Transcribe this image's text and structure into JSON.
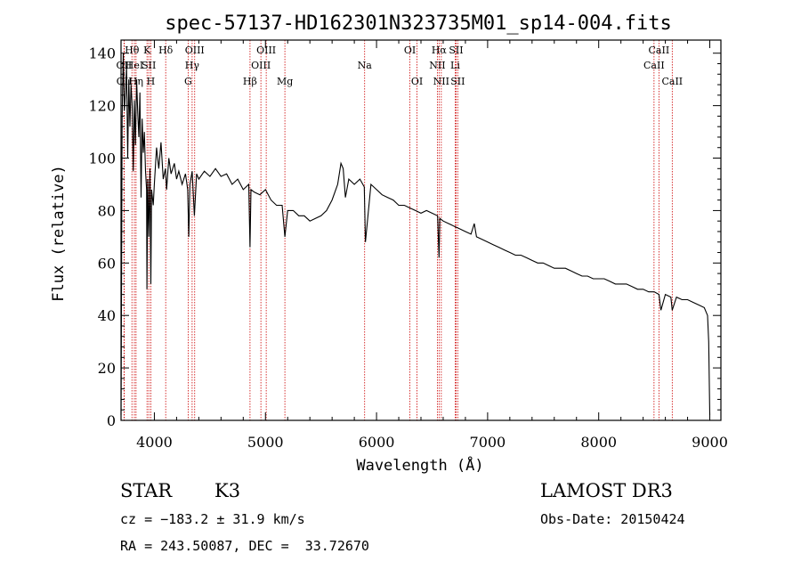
{
  "chart_data": {
    "type": "line",
    "title": "spec-57137-HD162301N323735M01_sp14-004.fits",
    "xlabel": "Wavelength (Å)",
    "ylabel": "Flux (relative)",
    "xlim": [
      3700,
      9100
    ],
    "ylim": [
      0,
      145
    ],
    "xticks": [
      4000,
      5000,
      6000,
      7000,
      8000,
      9000
    ],
    "yticks": [
      0,
      20,
      40,
      60,
      80,
      100,
      120,
      140
    ],
    "series": [
      {
        "name": "flux",
        "x": [
          3700,
          3705,
          3710,
          3720,
          3730,
          3740,
          3750,
          3760,
          3770,
          3780,
          3790,
          3800,
          3810,
          3820,
          3830,
          3840,
          3850,
          3860,
          3870,
          3880,
          3890,
          3900,
          3910,
          3920,
          3930,
          3933,
          3940,
          3950,
          3960,
          3968,
          3975,
          3990,
          4000,
          4020,
          4040,
          4060,
          4080,
          4100,
          4110,
          4130,
          4150,
          4180,
          4200,
          4220,
          4250,
          4280,
          4300,
          4310,
          4320,
          4340,
          4360,
          4380,
          4400,
          4450,
          4500,
          4550,
          4600,
          4650,
          4700,
          4750,
          4800,
          4850,
          4861,
          4870,
          4900,
          4950,
          5000,
          5050,
          5100,
          5150,
          5175,
          5200,
          5250,
          5300,
          5350,
          5400,
          5450,
          5500,
          5550,
          5600,
          5650,
          5680,
          5700,
          5720,
          5750,
          5800,
          5850,
          5890,
          5900,
          5950,
          6000,
          6050,
          6100,
          6150,
          6200,
          6250,
          6300,
          6350,
          6400,
          6450,
          6500,
          6550,
          6563,
          6570,
          6600,
          6650,
          6700,
          6750,
          6800,
          6850,
          6880,
          6900,
          6950,
          7000,
          7050,
          7100,
          7150,
          7200,
          7250,
          7300,
          7350,
          7400,
          7450,
          7500,
          7550,
          7600,
          7650,
          7700,
          7750,
          7800,
          7850,
          7900,
          7950,
          8000,
          8050,
          8100,
          8150,
          8200,
          8250,
          8300,
          8350,
          8400,
          8450,
          8500,
          8542,
          8560,
          8600,
          8650,
          8662,
          8700,
          8750,
          8800,
          8850,
          8900,
          8950,
          8980,
          8990,
          9000
        ],
        "values": [
          2,
          55,
          115,
          140,
          118,
          125,
          135,
          100,
          130,
          112,
          128,
          120,
          95,
          122,
          105,
          130,
          118,
          108,
          125,
          85,
          115,
          102,
          110,
          95,
          88,
          50,
          92,
          70,
          96,
          52,
          88,
          82,
          90,
          104,
          96,
          106,
          92,
          96,
          88,
          100,
          94,
          98,
          92,
          95,
          90,
          94,
          88,
          70,
          90,
          95,
          78,
          94,
          92,
          95,
          93,
          96,
          93,
          94,
          90,
          92,
          88,
          90,
          66,
          88,
          87,
          86,
          88,
          84,
          82,
          82,
          70,
          80,
          80,
          78,
          78,
          76,
          77,
          78,
          80,
          84,
          90,
          98,
          96,
          85,
          92,
          90,
          92,
          89,
          68,
          90,
          88,
          86,
          85,
          84,
          82,
          82,
          81,
          80,
          79,
          80,
          79,
          78,
          62,
          77,
          76,
          75,
          74,
          73,
          72,
          71,
          75,
          70,
          69,
          68,
          67,
          66,
          65,
          64,
          63,
          63,
          62,
          61,
          60,
          60,
          59,
          58,
          58,
          58,
          57,
          56,
          55,
          55,
          54,
          54,
          54,
          53,
          52,
          52,
          52,
          51,
          50,
          50,
          49,
          49,
          48,
          42,
          48,
          47,
          42,
          47,
          46,
          46,
          45,
          44,
          43,
          40,
          30,
          2
        ]
      }
    ],
    "lines": [
      {
        "name": "OII",
        "x": 3727,
        "row": 1
      },
      {
        "name": "OII",
        "x": 3729,
        "row": 2
      },
      {
        "name": "Hθ",
        "x": 3798,
        "row": 0
      },
      {
        "name": "HeI",
        "x": 3820,
        "row": 1
      },
      {
        "name": "Hη",
        "x": 3835,
        "row": 2
      },
      {
        "name": "K",
        "x": 3934,
        "row": 0
      },
      {
        "name": "SII",
        "x": 3950,
        "row": 1
      },
      {
        "name": "H",
        "x": 3968,
        "row": 2
      },
      {
        "name": "Hδ",
        "x": 4102,
        "row": 0
      },
      {
        "name": "OIII",
        "x": 4363,
        "row": 0
      },
      {
        "name": "Hγ",
        "x": 4340,
        "row": 1
      },
      {
        "name": "G",
        "x": 4304,
        "row": 2
      },
      {
        "name": "Hβ",
        "x": 4861,
        "row": 2
      },
      {
        "name": "OIII",
        "x": 5007,
        "row": 0
      },
      {
        "name": "OIII",
        "x": 4959,
        "row": 1
      },
      {
        "name": "Mg",
        "x": 5175,
        "row": 2
      },
      {
        "name": "Na",
        "x": 5893,
        "row": 1
      },
      {
        "name": "OI",
        "x": 6300,
        "row": 0
      },
      {
        "name": "OI",
        "x": 6364,
        "row": 2
      },
      {
        "name": "Hα",
        "x": 6563,
        "row": 0
      },
      {
        "name": "NII",
        "x": 6548,
        "row": 1
      },
      {
        "name": "NII",
        "x": 6583,
        "row": 2
      },
      {
        "name": "SII",
        "x": 6716,
        "row": 0
      },
      {
        "name": "Li",
        "x": 6708,
        "row": 1
      },
      {
        "name": "SII",
        "x": 6731,
        "row": 2
      },
      {
        "name": "CaII",
        "x": 8542,
        "row": 0
      },
      {
        "name": "CaII",
        "x": 8498,
        "row": 1
      },
      {
        "name": "CaII",
        "x": 8662,
        "row": 2
      }
    ]
  },
  "info": {
    "object_type": "STAR",
    "subclass": "K3",
    "survey": "LAMOST DR3",
    "velocity": "cz = −183.2 ± 31.9 km/s",
    "obs_date": "Obs-Date: 20150424",
    "coords": "RA = 243.50087, DEC =  33.72670"
  },
  "colors": {
    "spectrum": "#000000",
    "line_markers": "#cc0000",
    "axes": "#000000"
  }
}
